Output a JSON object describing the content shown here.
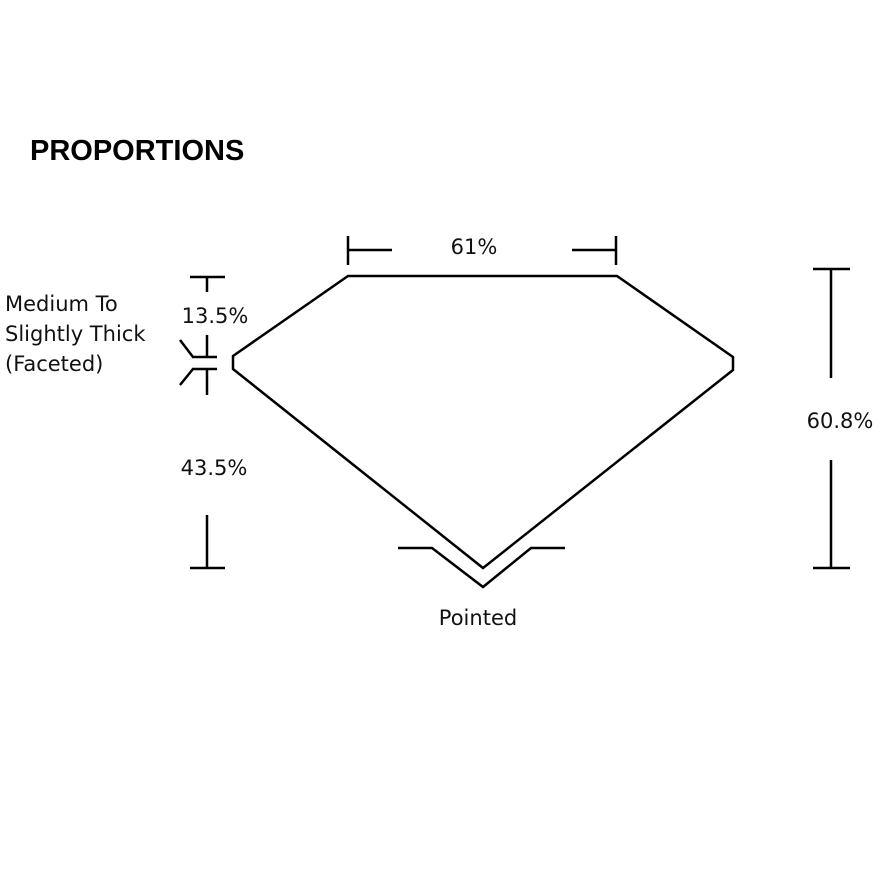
{
  "title": "PROPORTIONS",
  "labels": {
    "table": "61%",
    "crown": "13.5%",
    "pavilion": "43.5%",
    "depth": "60.8%",
    "girdle_line1": "Medium To",
    "girdle_line2": "Slightly Thick",
    "girdle_line3": "(Faceted)",
    "culet": "Pointed"
  }
}
